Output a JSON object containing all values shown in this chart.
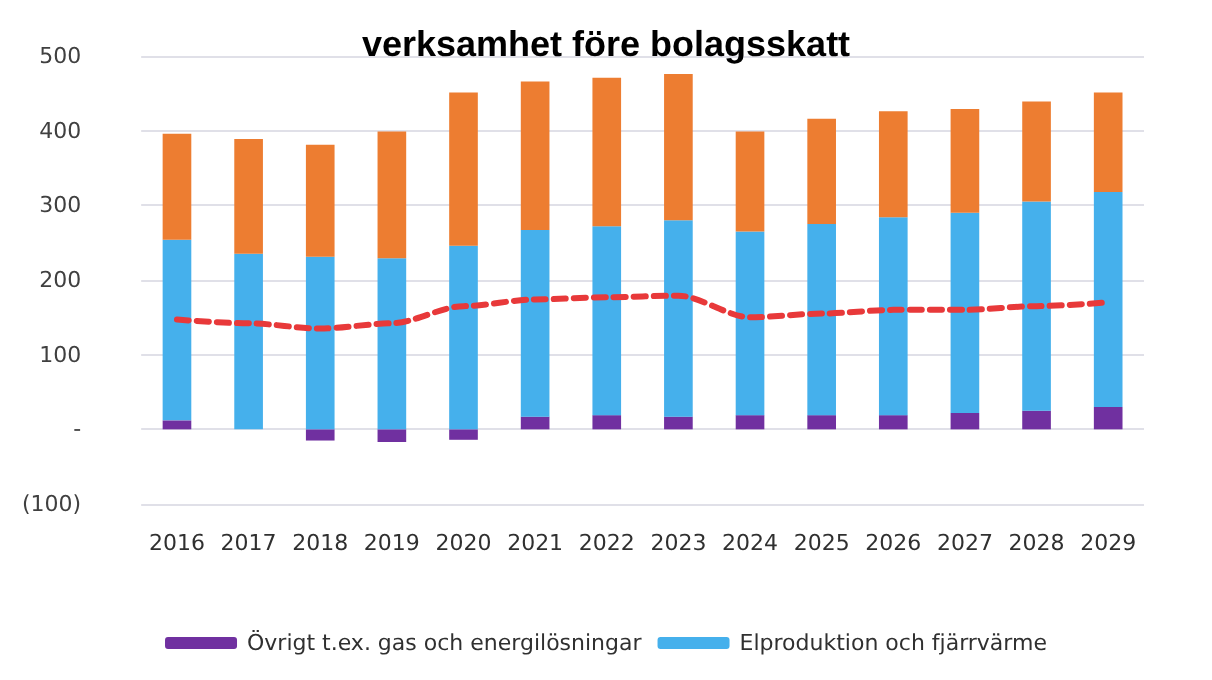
{
  "chart_data": {
    "type": "bar",
    "title": "verksamhet före bolagsskatt",
    "stacked": true,
    "categories": [
      "2016",
      "2017",
      "2018",
      "2019",
      "2020",
      "2021",
      "2022",
      "2023",
      "2024",
      "2025",
      "2026",
      "2027",
      "2028",
      "2029"
    ],
    "series": [
      {
        "name": "Övrigt t.ex. gas och energilösningar",
        "color": "#7030a0",
        "values": [
          12,
          0,
          -15,
          -17,
          -14,
          17,
          19,
          17,
          19,
          19,
          19,
          22,
          25,
          30
        ]
      },
      {
        "name": "Elproduktion och fjärrvärme",
        "color": "#45b0ec",
        "values": [
          242,
          235,
          231,
          229,
          246,
          250,
          253,
          263,
          246,
          256,
          265,
          268,
          280,
          288
        ]
      },
      {
        "color": "#ed7d31",
        "values": [
          142,
          154,
          150,
          170,
          205,
          199,
          199,
          196,
          134,
          141,
          142,
          139,
          134,
          133
        ]
      },
      {
        "type": "line",
        "color": "#e8393a",
        "line_style": "dashed",
        "marker": "none",
        "values": [
          147,
          142,
          135,
          142,
          165,
          174,
          177,
          179,
          150,
          155,
          160,
          160,
          165,
          170
        ]
      }
    ],
    "ylim": [
      -100,
      500
    ],
    "yticks": [
      {
        "value": -100,
        "label": "(100)"
      },
      {
        "value": 0,
        "label": "-"
      },
      100,
      200,
      300,
      400,
      500
    ],
    "grid": "y",
    "legend": "bottom"
  }
}
